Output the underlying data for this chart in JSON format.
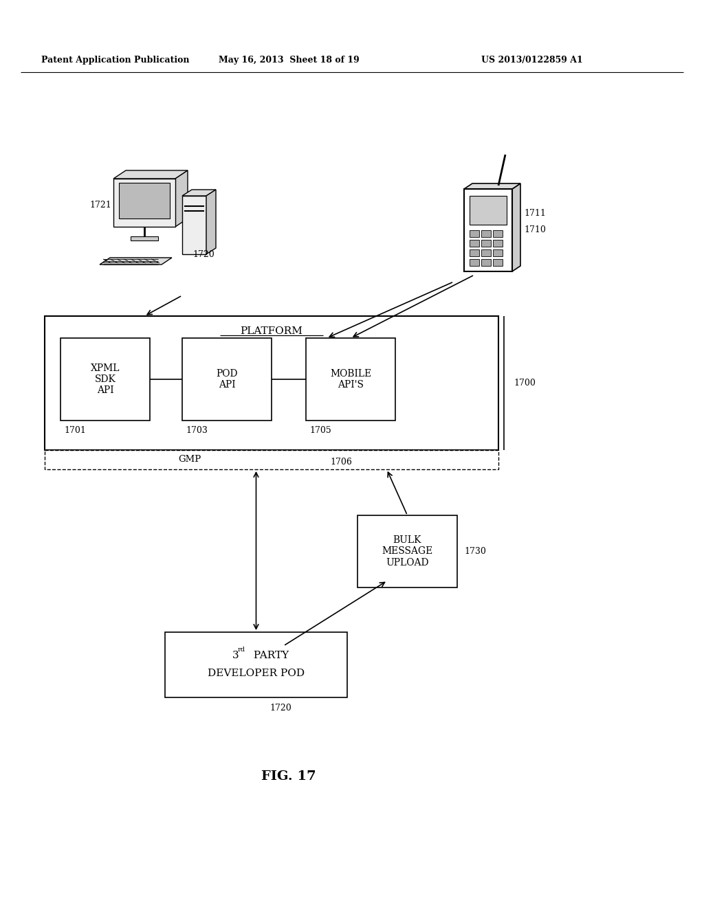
{
  "bg_color": "#ffffff",
  "header_left": "Patent Application Publication",
  "header_mid": "May 16, 2013  Sheet 18 of 19",
  "header_right": "US 2013/0122859 A1",
  "fig_label": "FIG. 17",
  "platform_label": "PLATFORM",
  "gmp_label": "GMP",
  "box_xpml_label": "XPML\nSDK\nAPI",
  "box_pod_label": "POD\nAPI",
  "box_mobile_label": "MOBILE\nAPI'S",
  "box_bulk_label": "BULK\nMESSAGE\nUPLOAD",
  "box_pod3_line1": "3",
  "box_pod3_line2": "rd PARTY",
  "box_pod3_line3": "DEVELOPER POD",
  "ref_1700": "1700",
  "ref_1701": "1701",
  "ref_1703": "1703",
  "ref_1705": "1705",
  "ref_1706": "1706",
  "ref_1710": "1710",
  "ref_1711": "1711",
  "ref_1720_comp": "1720",
  "ref_1720_pod": "1720",
  "ref_1721": "1721",
  "ref_1730": "1730"
}
